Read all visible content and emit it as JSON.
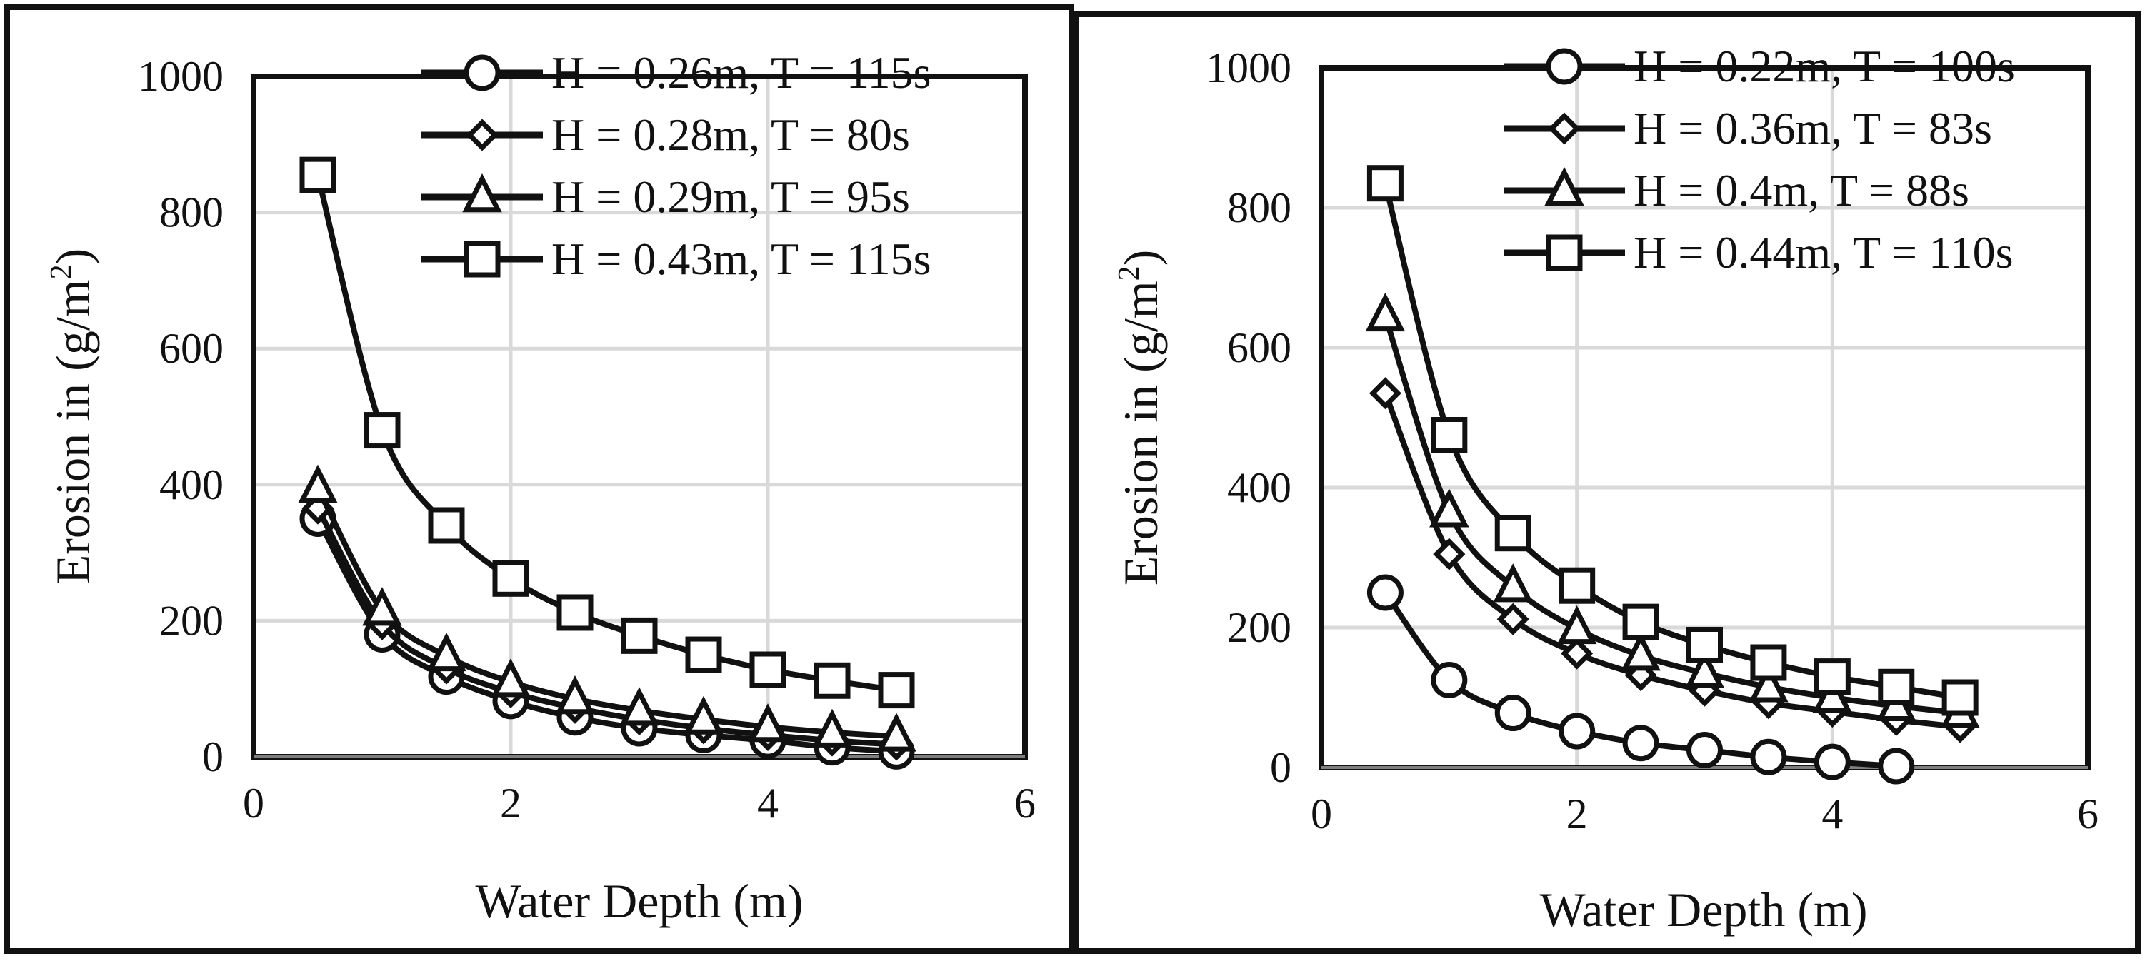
{
  "colors": {
    "ink": "#111111",
    "grid": "#d9d9d9",
    "background": "#ffffff"
  },
  "chart_data": [
    {
      "type": "line",
      "panel": "left",
      "title": "",
      "xlabel": "Water Depth (m)",
      "ylabel_main": "Erosion in (g/m",
      "ylabel_sup": "2",
      "ylabel_end": ")",
      "xlim": [
        0,
        6
      ],
      "ylim": [
        0,
        1000
      ],
      "xticks": [
        0,
        2,
        4,
        6
      ],
      "yticks": [
        0,
        200,
        400,
        600,
        800,
        1000
      ],
      "grid": true,
      "legend_position": "top-right",
      "x": [
        0.5,
        1,
        1.5,
        2,
        2.5,
        3,
        3.5,
        4,
        4.5,
        5
      ],
      "series": [
        {
          "name": "H = 0.26m, T = 115s",
          "marker": "circle",
          "values": [
            350,
            180,
            118,
            82,
            58,
            42,
            32,
            24,
            14,
            8
          ]
        },
        {
          "name": "H = 0.28m, T = 80s",
          "marker": "diamond",
          "values": [
            365,
            195,
            130,
            95,
            72,
            55,
            42,
            32,
            24,
            18
          ]
        },
        {
          "name": "H = 0.29m, T = 95s",
          "marker": "triangle",
          "values": [
            395,
            215,
            148,
            110,
            85,
            68,
            55,
            44,
            36,
            30
          ]
        },
        {
          "name": "H = 0.43m, T = 115s",
          "marker": "square",
          "values": [
            855,
            480,
            340,
            262,
            212,
            178,
            150,
            128,
            112,
            98
          ]
        }
      ]
    },
    {
      "type": "line",
      "panel": "right",
      "title": "",
      "xlabel": "Water Depth (m)",
      "ylabel_main": "Erosion in (g/m",
      "ylabel_sup": "2",
      "ylabel_end": ")",
      "xlim": [
        0,
        6
      ],
      "ylim": [
        0,
        1000
      ],
      "xticks": [
        0,
        2,
        4,
        6
      ],
      "yticks": [
        0,
        200,
        400,
        600,
        800,
        1000
      ],
      "grid": true,
      "legend_position": "top-right",
      "x": [
        0.5,
        1,
        1.5,
        2,
        2.5,
        3,
        3.5,
        4,
        4.5,
        5
      ],
      "series": [
        {
          "name": "H = 0.22m, T = 100s",
          "marker": "circle",
          "x": [
            0.5,
            1,
            1.5,
            2,
            2.5,
            3,
            3.5,
            4,
            4.5
          ],
          "values": [
            250,
            125,
            78,
            52,
            35,
            25,
            15,
            8,
            2
          ]
        },
        {
          "name": "H = 0.36m, T = 83s",
          "marker": "diamond",
          "values": [
            535,
            305,
            212,
            163,
            132,
            110,
            92,
            80,
            68,
            58
          ]
        },
        {
          "name": "H = 0.4m, T = 88s",
          "marker": "triangle",
          "values": [
            645,
            365,
            258,
            198,
            160,
            135,
            115,
            100,
            88,
            78
          ]
        },
        {
          "name": "H = 0.44m, T = 110s",
          "marker": "square",
          "values": [
            835,
            475,
            335,
            260,
            208,
            175,
            150,
            130,
            115,
            100
          ]
        }
      ]
    }
  ]
}
